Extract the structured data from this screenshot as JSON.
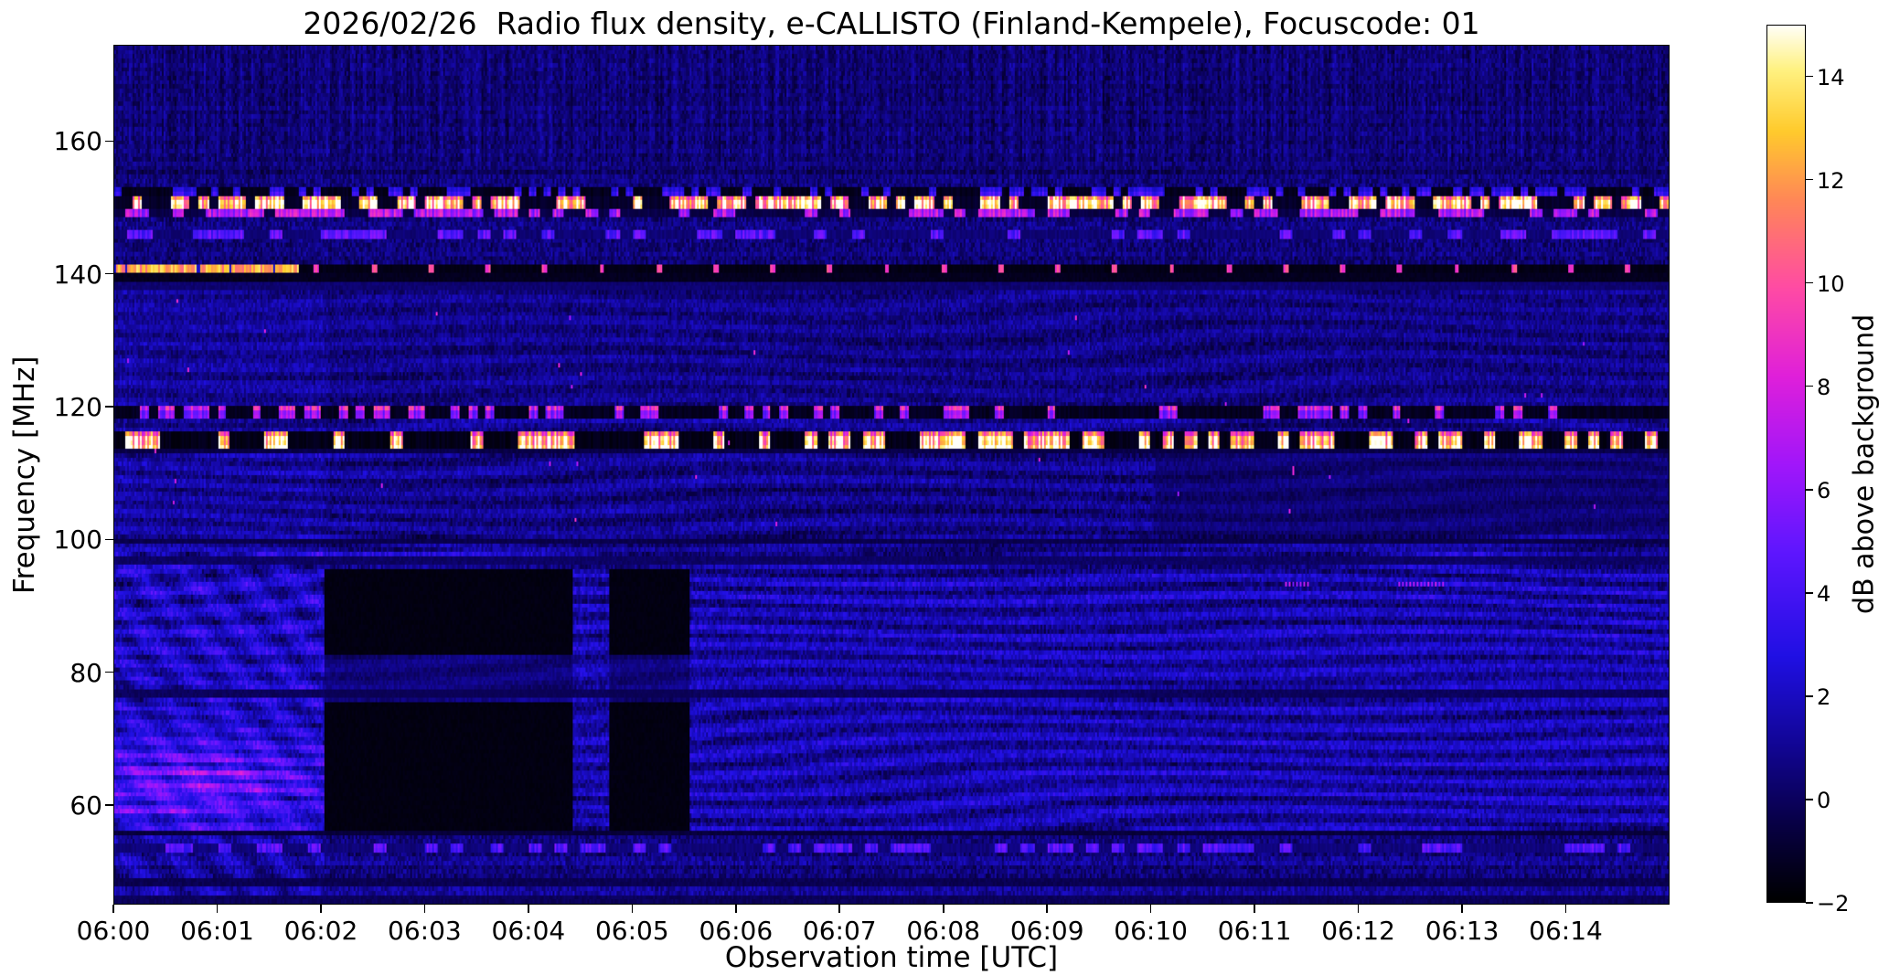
{
  "figure": {
    "background_color": "#ffffff",
    "text_color": "#000000"
  },
  "chart_data": {
    "type": "heatmap",
    "title": "2026/02/26  Radio flux density, e-CALLISTO (Finland-Kempele), Focuscode: 01",
    "xlabel": "Observation time [UTC]",
    "ylabel": "Frequency [MHz]",
    "colorbar_label": "dB above background",
    "x_start_time": "06:00",
    "x_tick_labels": [
      "06:00",
      "06:01",
      "06:02",
      "06:03",
      "06:04",
      "06:05",
      "06:06",
      "06:07",
      "06:08",
      "06:09",
      "06:10",
      "06:11",
      "06:12",
      "06:13",
      "06:14"
    ],
    "x_tick_minutes": [
      0,
      1,
      2,
      3,
      4,
      5,
      6,
      7,
      8,
      9,
      10,
      11,
      12,
      13,
      14
    ],
    "x_range_minutes": [
      0,
      15
    ],
    "y_ticks": [
      60,
      80,
      100,
      120,
      140,
      160
    ],
    "y_range_mhz": [
      45,
      174.5
    ],
    "value_range_db": [
      -2,
      15
    ],
    "colorbar_ticks": [
      {
        "v": 14,
        "label": "14"
      },
      {
        "v": 12,
        "label": "12"
      },
      {
        "v": 10,
        "label": "10"
      },
      {
        "v": 8,
        "label": "8"
      },
      {
        "v": 6,
        "label": "6"
      },
      {
        "v": 4,
        "label": "4"
      },
      {
        "v": 2,
        "label": "2"
      },
      {
        "v": 0,
        "label": "0"
      },
      {
        "v": -2,
        "label": "−2"
      }
    ],
    "grid": false,
    "colormap_stops": [
      {
        "t": 0.0,
        "c": [
          0,
          0,
          0
        ]
      },
      {
        "t": 0.09,
        "c": [
          8,
          0,
          70
        ]
      },
      {
        "t": 0.18,
        "c": [
          18,
          6,
          150
        ]
      },
      {
        "t": 0.28,
        "c": [
          32,
          16,
          228
        ]
      },
      {
        "t": 0.4,
        "c": [
          95,
          22,
          255
        ]
      },
      {
        "t": 0.5,
        "c": [
          162,
          22,
          250
        ]
      },
      {
        "t": 0.6,
        "c": [
          224,
          32,
          218
        ]
      },
      {
        "t": 0.7,
        "c": [
          255,
          75,
          165
        ]
      },
      {
        "t": 0.8,
        "c": [
          255,
          135,
          88
        ]
      },
      {
        "t": 0.88,
        "c": [
          255,
          203,
          45
        ]
      },
      {
        "t": 0.95,
        "c": [
          255,
          242,
          130
        ]
      },
      {
        "t": 1.0,
        "c": [
          255,
          255,
          248
        ]
      }
    ],
    "regions": [
      {
        "f": [
          157,
          174.5
        ],
        "base": 0.25,
        "noise": 0.8,
        "colStripe": 0.5,
        "rowStripe": 0.25
      },
      {
        "f": [
          155,
          157
        ],
        "base": 0.2,
        "noise": 0.8,
        "colStripe": 0.3,
        "rowStripe": 0.45
      },
      {
        "f": [
          141.2,
          155
        ],
        "base": 0.55,
        "noise": 0.95,
        "colStripe": 0.3,
        "rowStripe": 0.25
      },
      {
        "f": [
          120,
          141.2
        ],
        "base": 0.75,
        "noise": 0.85,
        "colStripe": 0.25,
        "rowStripe": 0.15,
        "ripple": {
          "amp": 0.7,
          "fk": 2.0,
          "w1": 2.2,
          "t1": 0.9,
          "p1": 0.15,
          "w2": 1.3,
          "t2": 0.5,
          "p2": 0.23
        }
      },
      {
        "f": [
          98,
          120
        ],
        "base": 0.85,
        "noise": 0.9,
        "colStripe": 0.2,
        "rowStripe": 0.15,
        "ripple": {
          "amp": 0.95,
          "fk": 2.1,
          "w1": 2.6,
          "t1": 0.8,
          "p1": 0.17,
          "w2": 1.6,
          "t2": 0.45,
          "p2": 0.11
        }
      },
      {
        "f": [
          56.2,
          98
        ],
        "base": 1.45,
        "noise": 1.0,
        "colStripe": 0.15,
        "rowStripe": 0.2,
        "ripple": {
          "amp": 1.35,
          "fk": 2.3,
          "w1": 2.8,
          "t1": 0.75,
          "p1": 0.16,
          "w2": 2.2,
          "t2": 0.4,
          "p2": 0.09
        }
      },
      {
        "f": [
          45,
          56.2
        ],
        "base": 0.8,
        "noise": 1.0,
        "colStripe": 0.2,
        "rowStripe": 0.5
      }
    ],
    "features": [
      {
        "type": "add",
        "t": [
          0,
          2.02
        ],
        "f": [
          98,
          139
        ],
        "add": 0.4
      },
      {
        "type": "leftZone",
        "t": [
          0,
          2.02
        ],
        "f": [
          45,
          98
        ],
        "add": 0.55,
        "stripeAmp": 0.85,
        "stripeFk": 0.85,
        "stripeTk": 13,
        "blobAmp": 4.3,
        "blobF": 63,
        "blobFw": 6.5,
        "blobT": 0.8,
        "blobTw": 1.2
      },
      {
        "type": "periodicCols",
        "f": [
          157,
          174.5
        ],
        "period": 0.12,
        "duty": 0.45,
        "add": 0.45
      },
      {
        "type": "burstRow",
        "f": [
          151.6,
          153.3
        ],
        "dark": -1.5,
        "bright": 3.5,
        "prob": 0.4,
        "segRate": 14
      },
      {
        "type": "burstRow",
        "f": [
          149.9,
          151.6
        ],
        "dark": -1.2,
        "bright": 12,
        "prob": 0.55,
        "segRate": 11
      },
      {
        "type": "burstRow",
        "f": [
          148.3,
          149.9
        ],
        "dark": -0.6,
        "bright": 7,
        "prob": 0.5,
        "segRate": 9
      },
      {
        "type": "burstRow",
        "f": [
          145.2,
          146.6
        ],
        "dark": 0.3,
        "bright": 4.5,
        "prob": 0.4,
        "segRate": 8
      },
      {
        "type": "line140",
        "f": [
          139.9,
          141.2
        ],
        "onUntil": 1.78,
        "onValue": 10.5,
        "onVar": 3.5,
        "offValue": -1.7,
        "dotPeriod": 0.55,
        "dotOffset": 0.27,
        "dotWidth": 0.05,
        "dotValue": 8.5
      },
      {
        "type": "block",
        "f": [
          138.7,
          139.9
        ],
        "value": -1.5,
        "noise": 0.35
      },
      {
        "type": "block",
        "f": [
          137.3,
          138.7
        ],
        "value": 0.0,
        "noise": 0.6
      },
      {
        "type": "burstRow",
        "f": [
          118.4,
          119.9
        ],
        "dark": -1.4,
        "bright": 7,
        "prob": 0.3,
        "segRate": 12
      },
      {
        "type": "burstRow",
        "f": [
          113.9,
          116.1
        ],
        "dark": -1.6,
        "bright": 13,
        "prob": 0.45,
        "segRate": 9
      },
      {
        "type": "block",
        "f": [
          112.9,
          113.9
        ],
        "value": -0.7,
        "noise": 0.5
      },
      {
        "type": "block",
        "f": [
          99.3,
          100.3
        ],
        "value": -0.6,
        "noise": 0.45
      },
      {
        "type": "block",
        "f": [
          96.0,
          97.2
        ],
        "value": -0.2,
        "noise": 0.6
      },
      {
        "type": "block",
        "f": [
          76.3,
          77.3
        ],
        "value": -0.3,
        "noise": 0.55
      },
      {
        "type": "block",
        "f": [
          55.3,
          56.2
        ],
        "value": -0.9,
        "noise": 0.4
      },
      {
        "type": "burstRow",
        "f": [
          52.6,
          54.2
        ],
        "dark": 0.4,
        "bright": 4.5,
        "prob": 0.4,
        "segRate": 8
      },
      {
        "type": "block",
        "f": [
          47.9,
          49.0
        ],
        "value": -0.5,
        "noise": 0.5
      },
      {
        "type": "block",
        "f": [
          45,
          46.2
        ],
        "value": -0.4,
        "noise": 0.6
      },
      {
        "type": "block",
        "t": [
          2.02,
          4.42
        ],
        "f": [
          82.6,
          95.4
        ],
        "value": -1.75,
        "noise": 0.25
      },
      {
        "type": "block",
        "t": [
          2.02,
          4.42
        ],
        "f": [
          56.2,
          75.3
        ],
        "value": -1.75,
        "noise": 0.25
      },
      {
        "type": "dim",
        "t": [
          2.02,
          4.42
        ],
        "f": [
          75.3,
          82.6
        ],
        "mul": 0.45,
        "add": -0.15
      },
      {
        "type": "block",
        "t": [
          4.78,
          5.56
        ],
        "f": [
          82.6,
          95.4
        ],
        "value": -1.75,
        "noise": 0.25
      },
      {
        "type": "block",
        "t": [
          4.78,
          5.56
        ],
        "f": [
          56.2,
          75.3
        ],
        "value": -1.75,
        "noise": 0.25
      },
      {
        "type": "dim",
        "t": [
          4.78,
          5.56
        ],
        "f": [
          75.3,
          82.6
        ],
        "mul": 0.45,
        "add": -0.15
      },
      {
        "type": "dim",
        "t": [
          10.05,
          15
        ],
        "f": [
          100.5,
          112.9
        ],
        "mul": 0.55,
        "add": -0.1
      },
      {
        "type": "dashRow",
        "t": [
          11.3,
          11.55
        ],
        "f": [
          92.6,
          93.5
        ],
        "value": 6.5,
        "dashPeriod": 0.035
      },
      {
        "type": "dashRow",
        "t": [
          12.4,
          12.85
        ],
        "f": [
          92.6,
          93.5
        ],
        "value": 6.5,
        "dashPeriod": 0.035
      },
      {
        "type": "specks",
        "f": [
          100,
          136
        ],
        "density": 0.0008,
        "value": 6
      }
    ]
  }
}
